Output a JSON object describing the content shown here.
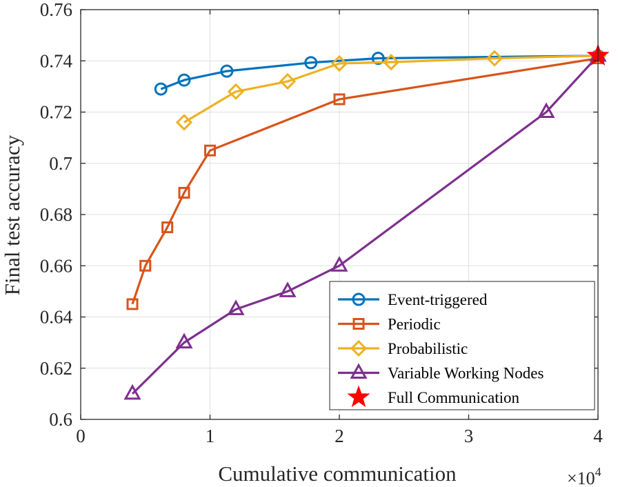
{
  "chart_data": {
    "type": "line",
    "title": "",
    "xlabel": "Cumulative communication",
    "ylabel": "Final test accuracy",
    "x_multiplier_label": "×10",
    "x_multiplier_exponent": "4",
    "xlim": [
      0,
      40000
    ],
    "ylim": [
      0.6,
      0.76
    ],
    "x_ticks": [
      0,
      10000,
      20000,
      30000,
      40000
    ],
    "x_tick_labels": [
      "0",
      "1",
      "2",
      "3",
      "4"
    ],
    "y_ticks": [
      0.6,
      0.62,
      0.64,
      0.66,
      0.68,
      0.7,
      0.72,
      0.74,
      0.76
    ],
    "y_tick_labels": [
      "0.6",
      "0.62",
      "0.64",
      "0.66",
      "0.68",
      "0.7",
      "0.72",
      "0.74",
      "0.76"
    ],
    "grid": true,
    "legend_position": "bottom-right",
    "series": [
      {
        "name": "Event-triggered",
        "marker": "circle",
        "color": "#0072BD",
        "x": [
          6200,
          8000,
          11300,
          17800,
          23000,
          40000
        ],
        "y": [
          0.729,
          0.7325,
          0.736,
          0.7393,
          0.741,
          0.742
        ]
      },
      {
        "name": "Periodic",
        "marker": "square",
        "color": "#D95319",
        "x": [
          4000,
          5000,
          6700,
          8000,
          10000,
          20000,
          40000
        ],
        "y": [
          0.645,
          0.66,
          0.675,
          0.6885,
          0.705,
          0.725,
          0.741
        ]
      },
      {
        "name": "Probabilistic",
        "marker": "diamond",
        "color": "#EDB120",
        "x": [
          8000,
          12000,
          16000,
          20000,
          24000,
          32000,
          40000
        ],
        "y": [
          0.716,
          0.728,
          0.732,
          0.739,
          0.7395,
          0.741,
          0.742
        ]
      },
      {
        "name": "Variable Working Nodes",
        "marker": "triangle",
        "color": "#7E2F8E",
        "x": [
          4000,
          8000,
          12000,
          16000,
          20000,
          36000,
          40000
        ],
        "y": [
          0.61,
          0.63,
          0.643,
          0.65,
          0.66,
          0.72,
          0.742
        ]
      },
      {
        "name": "Full Communication",
        "marker": "star",
        "color": "#FF0000",
        "x": [
          40000
        ],
        "y": [
          0.742
        ],
        "line": false
      }
    ]
  }
}
